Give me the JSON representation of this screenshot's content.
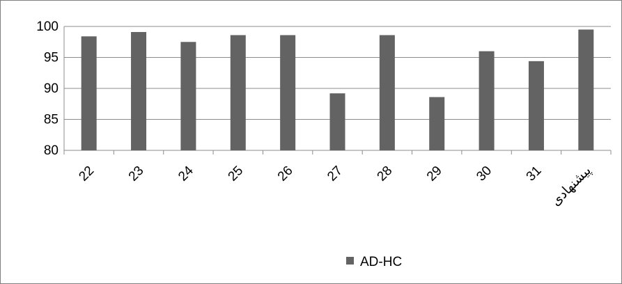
{
  "chart_data": {
    "type": "bar",
    "categories": [
      "22",
      "23",
      "24",
      "25",
      "26",
      "27",
      "28",
      "29",
      "30",
      "31",
      "پیشنهادی"
    ],
    "series": [
      {
        "name": "AD-HC",
        "values": [
          98.4,
          99.1,
          97.5,
          98.6,
          98.6,
          89.2,
          98.6,
          88.6,
          96.0,
          94.4,
          99.5
        ]
      }
    ],
    "title": "",
    "xlabel": "",
    "ylabel": "",
    "ylim": [
      80,
      100
    ],
    "yticks": [
      80,
      85,
      90,
      95,
      100
    ],
    "grid": true,
    "legend_position": "bottom",
    "colors": {
      "bar": "#636363",
      "grid": "#8c8c8c",
      "frame": "#7f7f7f"
    }
  }
}
